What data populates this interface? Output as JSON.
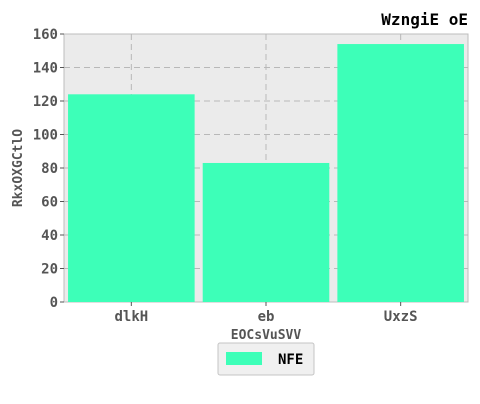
{
  "chart_data": {
    "type": "bar",
    "title": "WzngiE oE",
    "xlabel": "EOCsVuSVV",
    "ylabel": "RkxOXGCtlO",
    "categories": [
      "dlkH",
      "eb",
      "UxzS"
    ],
    "series": [
      {
        "name": "NFE",
        "values": [
          124,
          83,
          154
        ],
        "color": "#3dffb8"
      }
    ],
    "ylim": [
      0,
      160
    ],
    "yticks": [
      "0",
      "20",
      "40",
      "60",
      "80",
      "100",
      "120",
      "140",
      "160"
    ],
    "grid": true,
    "legend_position": "bottom-center",
    "colors": {
      "plot_background": "#ebebeb",
      "grid": "#b8b8b8",
      "bar": "#3dffb8"
    }
  }
}
